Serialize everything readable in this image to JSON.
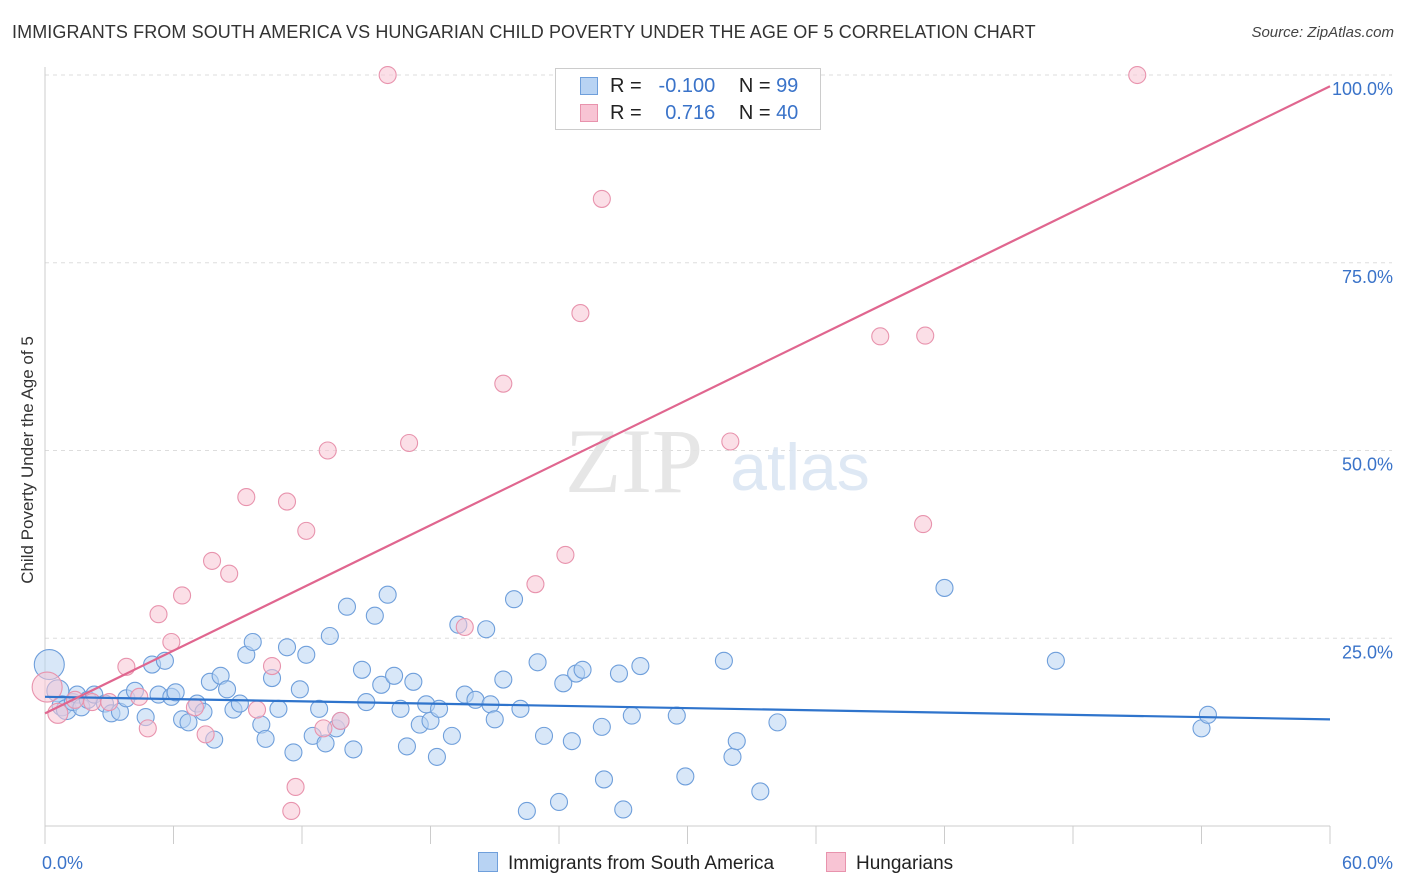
{
  "title": "IMMIGRANTS FROM SOUTH AMERICA VS HUNGARIAN CHILD POVERTY UNDER THE AGE OF 5 CORRELATION CHART",
  "source": "Source: ZipAtlas.com",
  "watermark": {
    "zip": "ZIP",
    "atlas": "atlas"
  },
  "legend": {
    "rows": [
      {
        "r_label": "R =",
        "r_value": "-0.100",
        "n_label": "N =",
        "n_value": "99"
      },
      {
        "r_label": "R =",
        "r_value": "0.716",
        "n_label": "N =",
        "n_value": "40"
      }
    ]
  },
  "bottom_legend": [
    "Immigrants from South America",
    "Hungarians"
  ],
  "colors": {
    "blue_fill": "#b8d3f3",
    "blue_stroke": "#6f9fdb",
    "blue_line": "#2f74cc",
    "pink_fill": "#f8c4d4",
    "pink_stroke": "#e893ad",
    "pink_line": "#e0668f",
    "axis_text": "#3a73c9",
    "grid": "#dddddd"
  },
  "chart_data": {
    "type": "scatter",
    "title": "IMMIGRANTS FROM SOUTH AMERICA VS HUNGARIAN CHILD POVERTY UNDER THE AGE OF 5 CORRELATION CHART",
    "xlabel": "",
    "ylabel": "Child Poverty Under the Age of 5",
    "xlim": [
      0,
      60
    ],
    "ylim": [
      0,
      102
    ],
    "x_tick_labels": [
      "0.0%",
      "60.0%"
    ],
    "y_ticks": [
      25,
      50,
      75,
      100
    ],
    "y_tick_labels": [
      "25.0%",
      "50.0%",
      "75.0%",
      "100.0%"
    ],
    "grid": true,
    "series": [
      {
        "name": "Immigrants from South America",
        "r": -0.1,
        "n": 99,
        "trend": {
          "x0": 0,
          "y0": 17.2,
          "x1": 60,
          "y1": 14.2
        },
        "points": [
          [
            0.2,
            21.5,
            4
          ],
          [
            0.6,
            18,
            3
          ],
          [
            0.8,
            16,
            2
          ],
          [
            1.0,
            15.5,
            2
          ],
          [
            1.3,
            16.5,
            1
          ],
          [
            1.5,
            17.5,
            1
          ],
          [
            1.7,
            15.8,
            1
          ],
          [
            2.0,
            16.8,
            1
          ],
          [
            2.3,
            17.5,
            1
          ],
          [
            2.8,
            16.3,
            1
          ],
          [
            3.1,
            15,
            1
          ],
          [
            3.5,
            15.2,
            1
          ],
          [
            3.8,
            17,
            1
          ],
          [
            4.2,
            18,
            1
          ],
          [
            4.7,
            14.5,
            1
          ],
          [
            5.0,
            21.5,
            1
          ],
          [
            5.3,
            17.5,
            1
          ],
          [
            5.6,
            22,
            1
          ],
          [
            5.9,
            17.2,
            1
          ],
          [
            6.1,
            17.8,
            1
          ],
          [
            6.4,
            14.2,
            1
          ],
          [
            6.7,
            13.8,
            1
          ],
          [
            7.1,
            16.3,
            1
          ],
          [
            7.4,
            15.2,
            1
          ],
          [
            7.7,
            19.2,
            1
          ],
          [
            7.9,
            11.5,
            1
          ],
          [
            8.2,
            20,
            1
          ],
          [
            8.5,
            18.2,
            1
          ],
          [
            8.8,
            15.5,
            1
          ],
          [
            9.1,
            16.3,
            1
          ],
          [
            9.4,
            22.8,
            1
          ],
          [
            9.7,
            24.5,
            1
          ],
          [
            10.1,
            13.5,
            1
          ],
          [
            10.3,
            11.6,
            1
          ],
          [
            10.6,
            19.7,
            1
          ],
          [
            10.9,
            15.6,
            1
          ],
          [
            11.3,
            23.8,
            1
          ],
          [
            11.6,
            9.8,
            1
          ],
          [
            11.9,
            18.2,
            1
          ],
          [
            12.2,
            22.8,
            1
          ],
          [
            12.5,
            12,
            1
          ],
          [
            12.8,
            15.6,
            1
          ],
          [
            13.1,
            11,
            1
          ],
          [
            13.3,
            25.3,
            1
          ],
          [
            13.6,
            13,
            1
          ],
          [
            13.8,
            14,
            1
          ],
          [
            14.1,
            29.2,
            1
          ],
          [
            14.4,
            10.2,
            1
          ],
          [
            14.8,
            20.8,
            1
          ],
          [
            15.0,
            16.5,
            1
          ],
          [
            15.4,
            28,
            1
          ],
          [
            15.7,
            18.8,
            1
          ],
          [
            16.0,
            30.8,
            1
          ],
          [
            16.3,
            20,
            1
          ],
          [
            16.6,
            15.6,
            1
          ],
          [
            16.9,
            10.6,
            1
          ],
          [
            17.2,
            19.2,
            1
          ],
          [
            17.5,
            13.5,
            1
          ],
          [
            17.8,
            16.2,
            1
          ],
          [
            18.0,
            14,
            1
          ],
          [
            18.3,
            9.2,
            1
          ],
          [
            18.4,
            15.6,
            1
          ],
          [
            19.0,
            12,
            1
          ],
          [
            19.3,
            26.8,
            1
          ],
          [
            19.6,
            17.5,
            1
          ],
          [
            20.1,
            16.8,
            1
          ],
          [
            20.6,
            26.2,
            1
          ],
          [
            20.8,
            16.2,
            1
          ],
          [
            21.0,
            14.2,
            1
          ],
          [
            21.4,
            19.5,
            1
          ],
          [
            21.9,
            30.2,
            1
          ],
          [
            22.2,
            15.6,
            1
          ],
          [
            22.5,
            2.0,
            1
          ],
          [
            23.0,
            21.8,
            1
          ],
          [
            23.3,
            12,
            1
          ],
          [
            24.0,
            3.2,
            1
          ],
          [
            24.2,
            19,
            1
          ],
          [
            24.6,
            11.3,
            1
          ],
          [
            24.8,
            20.3,
            1
          ],
          [
            25.1,
            20.8,
            1
          ],
          [
            26.0,
            13.2,
            1
          ],
          [
            26.1,
            6.2,
            1
          ],
          [
            26.8,
            20.3,
            1
          ],
          [
            27.0,
            2.2,
            1
          ],
          [
            27.4,
            14.7,
            1
          ],
          [
            27.8,
            21.3,
            1
          ],
          [
            29.5,
            14.7,
            1
          ],
          [
            29.9,
            6.6,
            1
          ],
          [
            31.7,
            22,
            1
          ],
          [
            32.1,
            9.2,
            1
          ],
          [
            32.3,
            11.3,
            1
          ],
          [
            33.4,
            4.6,
            1
          ],
          [
            34.2,
            13.8,
            1
          ],
          [
            42.0,
            31.7,
            1
          ],
          [
            47.2,
            22,
            1
          ],
          [
            54.0,
            13,
            1
          ],
          [
            54.3,
            14.8,
            1
          ]
        ]
      },
      {
        "name": "Hungarians",
        "r": 0.716,
        "n": 40,
        "trend": {
          "x0": 0,
          "y0": 15.0,
          "x1": 60,
          "y1": 98.5
        },
        "points": [
          [
            0.1,
            18.5,
            4
          ],
          [
            0.6,
            15,
            2
          ],
          [
            1.4,
            16.8,
            1
          ],
          [
            2.2,
            16.5,
            1
          ],
          [
            3.0,
            16.5,
            1
          ],
          [
            3.8,
            21.2,
            1
          ],
          [
            4.4,
            17.2,
            1
          ],
          [
            4.8,
            13,
            1
          ],
          [
            5.3,
            28.2,
            1
          ],
          [
            5.9,
            24.5,
            1
          ],
          [
            6.4,
            30.7,
            1
          ],
          [
            7.0,
            15.8,
            1
          ],
          [
            7.5,
            12.2,
            1
          ],
          [
            7.8,
            35.3,
            1
          ],
          [
            8.6,
            33.6,
            1
          ],
          [
            9.4,
            43.8,
            1
          ],
          [
            9.9,
            15.5,
            1
          ],
          [
            10.6,
            21.3,
            1
          ],
          [
            11.3,
            43.2,
            1
          ],
          [
            11.5,
            2.0,
            1
          ],
          [
            11.7,
            5.2,
            1
          ],
          [
            12.2,
            39.3,
            1
          ],
          [
            13.0,
            13,
            1
          ],
          [
            13.2,
            50,
            1
          ],
          [
            13.8,
            14,
            1
          ],
          [
            16.0,
            100,
            1
          ],
          [
            17.0,
            51,
            1
          ],
          [
            19.6,
            26.5,
            1
          ],
          [
            21.4,
            58.9,
            1
          ],
          [
            22.9,
            32.2,
            1
          ],
          [
            24.3,
            36.1,
            1
          ],
          [
            25.0,
            68.3,
            1
          ],
          [
            26.0,
            83.5,
            1
          ],
          [
            32.0,
            51.2,
            1
          ],
          [
            39.0,
            65.2,
            1
          ],
          [
            41.1,
            65.3,
            1
          ],
          [
            41.0,
            40.2,
            1
          ],
          [
            51.0,
            100,
            1
          ]
        ]
      }
    ]
  }
}
